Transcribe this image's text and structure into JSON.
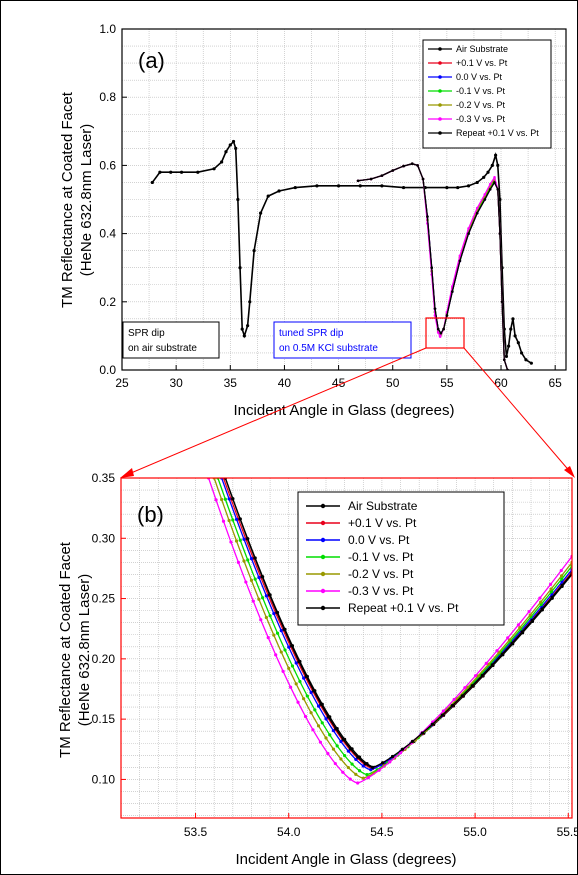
{
  "chart_data": [
    {
      "type": "line",
      "panel_label": "(a)",
      "xlabel": "Incident Angle in Glass (degrees)",
      "ylabel_line1": "TM Reflectance at Coated Facet",
      "ylabel_line2": "(HeNe 632.8nm Laser)",
      "xlim": [
        25,
        66
      ],
      "ylim": [
        0.0,
        1.0
      ],
      "xticks": [
        "25",
        "30",
        "35",
        "40",
        "45",
        "50",
        "55",
        "60",
        "65"
      ],
      "yticks": [
        "0.0",
        "0.2",
        "0.4",
        "0.6",
        "0.8",
        "1.0"
      ],
      "grid": true,
      "legend_position": "top-right",
      "series": [
        {
          "name": "Air Substrate",
          "color": "#000000",
          "x": [
            27.8,
            28.5,
            29.5,
            30.5,
            32,
            33.5,
            34.2,
            34.6,
            35.0,
            35.3,
            35.5,
            35.7,
            35.9,
            36.1,
            36.3,
            36.6,
            36.8,
            37.2,
            37.8,
            38.5,
            39.5,
            41,
            43,
            45,
            47,
            49,
            51,
            53,
            55,
            56,
            57,
            57.8,
            58.4,
            58.8,
            59.2,
            59.5,
            59.7,
            59.9,
            60.1,
            60.3,
            60.5,
            60.7,
            60.9,
            61.1,
            61.3,
            61.6,
            61.9,
            62.3,
            62.8
          ],
          "y": [
            0.55,
            0.58,
            0.58,
            0.58,
            0.58,
            0.59,
            0.61,
            0.64,
            0.66,
            0.67,
            0.65,
            0.5,
            0.3,
            0.12,
            0.1,
            0.13,
            0.2,
            0.35,
            0.46,
            0.51,
            0.525,
            0.535,
            0.54,
            0.54,
            0.54,
            0.54,
            0.535,
            0.535,
            0.535,
            0.535,
            0.54,
            0.55,
            0.565,
            0.58,
            0.6,
            0.63,
            0.6,
            0.5,
            0.3,
            0.12,
            0.04,
            0.07,
            0.12,
            0.15,
            0.1,
            0.08,
            0.05,
            0.03,
            0.02
          ]
        },
        {
          "name": "+0.1 V vs. Pt",
          "color": "#e8001c",
          "x": [
            46.8,
            48,
            49,
            50,
            51,
            51.8,
            52.3,
            52.8,
            53.2,
            53.6,
            53.9,
            54.2,
            54.45,
            54.7,
            55.0,
            55.5,
            56.2,
            57,
            57.8,
            58.5,
            59.0,
            59.4,
            59.7,
            59.9,
            60.1,
            60.3,
            60.6
          ],
          "y": [
            0.555,
            0.56,
            0.57,
            0.585,
            0.598,
            0.605,
            0.6,
            0.56,
            0.45,
            0.3,
            0.18,
            0.12,
            0.105,
            0.12,
            0.16,
            0.23,
            0.32,
            0.4,
            0.46,
            0.5,
            0.53,
            0.55,
            0.53,
            0.4,
            0.2,
            0.03,
            0.0
          ]
        },
        {
          "name": "0.0 V vs. Pt",
          "color": "#0000ff",
          "x": [
            46.8,
            48,
            49,
            50,
            51,
            51.8,
            52.3,
            52.8,
            53.2,
            53.6,
            53.9,
            54.2,
            54.45,
            54.7,
            55.0,
            55.5,
            56.2,
            57,
            57.8,
            58.5,
            59.0,
            59.4,
            59.7,
            59.9,
            60.1,
            60.3,
            60.6
          ],
          "y": [
            0.555,
            0.56,
            0.57,
            0.585,
            0.598,
            0.605,
            0.6,
            0.56,
            0.45,
            0.3,
            0.18,
            0.12,
            0.108,
            0.12,
            0.16,
            0.23,
            0.32,
            0.4,
            0.46,
            0.5,
            0.53,
            0.55,
            0.53,
            0.4,
            0.2,
            0.03,
            0.0
          ]
        },
        {
          "name": "-0.1 V vs. Pt",
          "color": "#00dd00",
          "x": [
            46.8,
            48,
            49,
            50,
            51,
            51.8,
            52.3,
            52.8,
            53.2,
            53.6,
            53.9,
            54.2,
            54.4,
            54.7,
            55.0,
            55.5,
            56.2,
            57,
            57.8,
            58.5,
            59.0,
            59.4,
            59.7,
            59.9,
            60.1,
            60.3,
            60.6
          ],
          "y": [
            0.555,
            0.56,
            0.57,
            0.585,
            0.598,
            0.605,
            0.6,
            0.56,
            0.44,
            0.29,
            0.17,
            0.115,
            0.103,
            0.12,
            0.16,
            0.235,
            0.325,
            0.405,
            0.465,
            0.505,
            0.535,
            0.555,
            0.53,
            0.4,
            0.2,
            0.03,
            0.0
          ]
        },
        {
          "name": "-0.2 V vs. Pt",
          "color": "#999900",
          "x": [
            46.8,
            48,
            49,
            50,
            51,
            51.8,
            52.3,
            52.8,
            53.2,
            53.6,
            53.9,
            54.2,
            54.4,
            54.7,
            55.0,
            55.5,
            56.2,
            57,
            57.8,
            58.5,
            59.0,
            59.4,
            59.7,
            59.9,
            60.1,
            60.3,
            60.6
          ],
          "y": [
            0.555,
            0.56,
            0.57,
            0.585,
            0.598,
            0.605,
            0.6,
            0.56,
            0.44,
            0.29,
            0.17,
            0.112,
            0.1,
            0.12,
            0.165,
            0.24,
            0.33,
            0.41,
            0.47,
            0.51,
            0.54,
            0.56,
            0.53,
            0.4,
            0.2,
            0.03,
            0.0
          ]
        },
        {
          "name": "-0.3 V vs. Pt",
          "color": "#ff00ff",
          "x": [
            46.8,
            48,
            49,
            50,
            51,
            51.8,
            52.3,
            52.8,
            53.2,
            53.6,
            53.9,
            54.2,
            54.38,
            54.7,
            55.0,
            55.5,
            56.2,
            57,
            57.8,
            58.5,
            59.0,
            59.4,
            59.7,
            59.9,
            60.1,
            60.3,
            60.6
          ],
          "y": [
            0.555,
            0.56,
            0.57,
            0.585,
            0.598,
            0.605,
            0.6,
            0.56,
            0.43,
            0.28,
            0.16,
            0.11,
            0.098,
            0.12,
            0.17,
            0.245,
            0.335,
            0.415,
            0.475,
            0.515,
            0.545,
            0.565,
            0.53,
            0.4,
            0.2,
            0.03,
            0.0
          ]
        },
        {
          "name": "Repeat +0.1 V vs. Pt",
          "color": "#000000",
          "x": [
            46.8,
            48,
            49,
            50,
            51,
            51.8,
            52.3,
            52.8,
            53.2,
            53.6,
            53.9,
            54.2,
            54.45,
            54.7,
            55.0,
            55.5,
            56.2,
            57,
            57.8,
            58.5,
            59.0,
            59.4,
            59.7,
            59.9,
            60.1,
            60.3,
            60.6
          ],
          "y": [
            0.555,
            0.56,
            0.57,
            0.585,
            0.598,
            0.605,
            0.6,
            0.56,
            0.45,
            0.3,
            0.18,
            0.12,
            0.108,
            0.12,
            0.16,
            0.23,
            0.32,
            0.4,
            0.46,
            0.5,
            0.53,
            0.55,
            0.53,
            0.4,
            0.2,
            0.03,
            0.0
          ]
        }
      ],
      "annotations": [
        {
          "line1": "SPR dip",
          "line2": "on air substrate",
          "color": "#000000"
        },
        {
          "line1": "tuned SPR dip",
          "line2": "on 0.5M KCl substrate",
          "color": "#0000ff"
        }
      ],
      "zoom_box": {
        "x": [
          53.3,
          55.5
        ],
        "y": [
          0.065,
          0.15
        ]
      }
    },
    {
      "type": "line",
      "panel_label": "(b)",
      "xlabel": "Incident Angle in Glass (degrees)",
      "ylabel_line1": "TM Reflectance at Coated Facet",
      "ylabel_line2": "(HeNe 632.8nm Laser)",
      "xlim": [
        53.1,
        55.52
      ],
      "ylim": [
        0.068,
        0.35
      ],
      "xticks": [
        "53.5",
        "54.0",
        "54.5",
        "55.0",
        "55.5"
      ],
      "xtick_values": [
        53.5,
        54.0,
        54.5,
        55.0,
        55.5
      ],
      "yticks": [
        "0.10",
        "0.15",
        "0.20",
        "0.25",
        "0.30",
        "0.35"
      ],
      "ytick_values": [
        0.1,
        0.15,
        0.2,
        0.25,
        0.3,
        0.35
      ],
      "grid": true,
      "legend_position": "top-right",
      "series": [
        {
          "name": "Air Substrate",
          "color": "#000000",
          "min_x": 54.46,
          "min_y": 0.11,
          "left_x": 53.66,
          "right_y": 0.27
        },
        {
          "name": "+0.1 V vs. Pt",
          "color": "#e8001c",
          "min_x": 54.45,
          "min_y": 0.109,
          "left_x": 53.65,
          "right_y": 0.272
        },
        {
          "name": "0.0 V vs. Pt",
          "color": "#0000ff",
          "min_x": 54.44,
          "min_y": 0.108,
          "left_x": 53.64,
          "right_y": 0.274
        },
        {
          "name": "-0.1 V vs. Pt",
          "color": "#00dd00",
          "min_x": 54.42,
          "min_y": 0.104,
          "left_x": 53.62,
          "right_y": 0.277
        },
        {
          "name": "-0.2 V vs. Pt",
          "color": "#999900",
          "min_x": 54.4,
          "min_y": 0.101,
          "left_x": 53.6,
          "right_y": 0.28
        },
        {
          "name": "-0.3 V vs. Pt",
          "color": "#ff00ff",
          "min_x": 54.37,
          "min_y": 0.097,
          "left_x": 53.57,
          "right_y": 0.285
        },
        {
          "name": "Repeat +0.1 V vs. Pt",
          "color": "#000000",
          "min_x": 54.45,
          "min_y": 0.11,
          "left_x": 53.66,
          "right_y": 0.271
        }
      ]
    }
  ]
}
